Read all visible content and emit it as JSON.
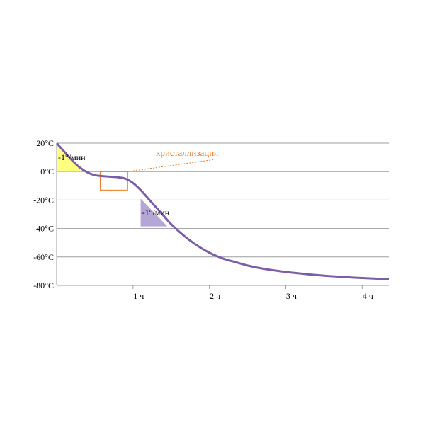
{
  "chart_data": {
    "type": "line",
    "x_unit": "ч",
    "y_unit": "°C",
    "xlim": [
      0,
      4.35
    ],
    "ylim": [
      -80,
      20
    ],
    "x_ticks": [
      {
        "value": 1,
        "label": "1 ч"
      },
      {
        "value": 2,
        "label": "2 ч"
      },
      {
        "value": 3,
        "label": "3 ч"
      },
      {
        "value": 4,
        "label": "4 ч"
      }
    ],
    "y_ticks": [
      {
        "value": 20,
        "label": "20°C"
      },
      {
        "value": 0,
        "label": "0°C"
      },
      {
        "value": -20,
        "label": "-20°C"
      },
      {
        "value": -40,
        "label": "-40°C"
      },
      {
        "value": -60,
        "label": "-60°C"
      },
      {
        "value": -80,
        "label": "-80°C"
      }
    ],
    "grid": true,
    "series": [
      {
        "color": "#7b5ea7",
        "x": [
          0,
          0.1,
          0.2,
          0.3,
          0.4,
          0.5,
          0.6,
          0.7,
          0.8,
          0.9,
          1.0,
          1.1,
          1.2,
          1.3,
          1.4,
          1.5,
          1.6,
          1.7,
          1.8,
          1.9,
          2.0,
          2.1,
          2.2,
          2.3,
          2.5,
          2.7,
          3.0,
          3.3,
          3.6,
          3.9,
          4.2,
          4.35
        ],
        "values": [
          20,
          14,
          8,
          3,
          -0.5,
          -2.5,
          -3.2,
          -3.6,
          -4.0,
          -5,
          -8,
          -13,
          -19,
          -25,
          -31,
          -37,
          -42,
          -46.5,
          -50.5,
          -54,
          -57,
          -59.5,
          -61.5,
          -63,
          -66,
          -68.2,
          -70.5,
          -72.2,
          -73.5,
          -74.5,
          -75.3,
          -75.7
        ]
      }
    ],
    "annotations": [
      {
        "type": "rate-triangle",
        "label": "-1°/мин",
        "color": "#ffff80",
        "x": [
          0,
          0,
          0.33
        ],
        "y": [
          20,
          0,
          0
        ]
      },
      {
        "type": "rate-triangle",
        "label": "-1°/мин",
        "color": "#b4a7d6",
        "x": [
          1.1,
          1.1,
          1.45
        ],
        "y": [
          -19,
          -38.5,
          -38.5
        ]
      },
      {
        "type": "box",
        "label": "кристаллизация",
        "color": "#e8781e",
        "x_range": [
          0.57,
          0.93
        ],
        "y_range": [
          -13,
          0
        ]
      }
    ]
  }
}
